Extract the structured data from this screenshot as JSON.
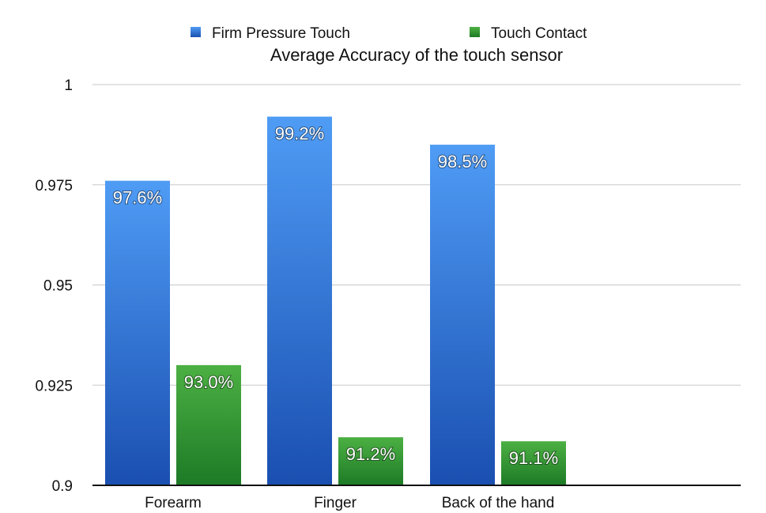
{
  "chart_data": {
    "type": "bar",
    "title": "Average Accuracy of the touch sensor",
    "categories": [
      "Forearm",
      "Finger",
      "Back of the hand"
    ],
    "series": [
      {
        "name": "Firm Pressure Touch",
        "values": [
          0.976,
          0.992,
          0.985
        ],
        "labels": [
          "97.6%",
          "99.2%",
          "98.5%"
        ],
        "color_top": "#4f9cf5",
        "color_bottom": "#1a4fb0"
      },
      {
        "name": "Touch Contact",
        "values": [
          0.93,
          0.912,
          0.911
        ],
        "labels": [
          "93.0%",
          "91.2%",
          "91.1%"
        ],
        "color_top": "#4cb043",
        "color_bottom": "#1d7a26"
      }
    ],
    "ylim": [
      0.9,
      1.0
    ],
    "yticks": [
      0.9,
      0.925,
      0.95,
      0.975,
      1
    ],
    "ytick_labels": [
      "0.9",
      "0.925",
      "0.95",
      "0.975",
      "1"
    ],
    "grid": true,
    "legend_position": "top-center"
  }
}
